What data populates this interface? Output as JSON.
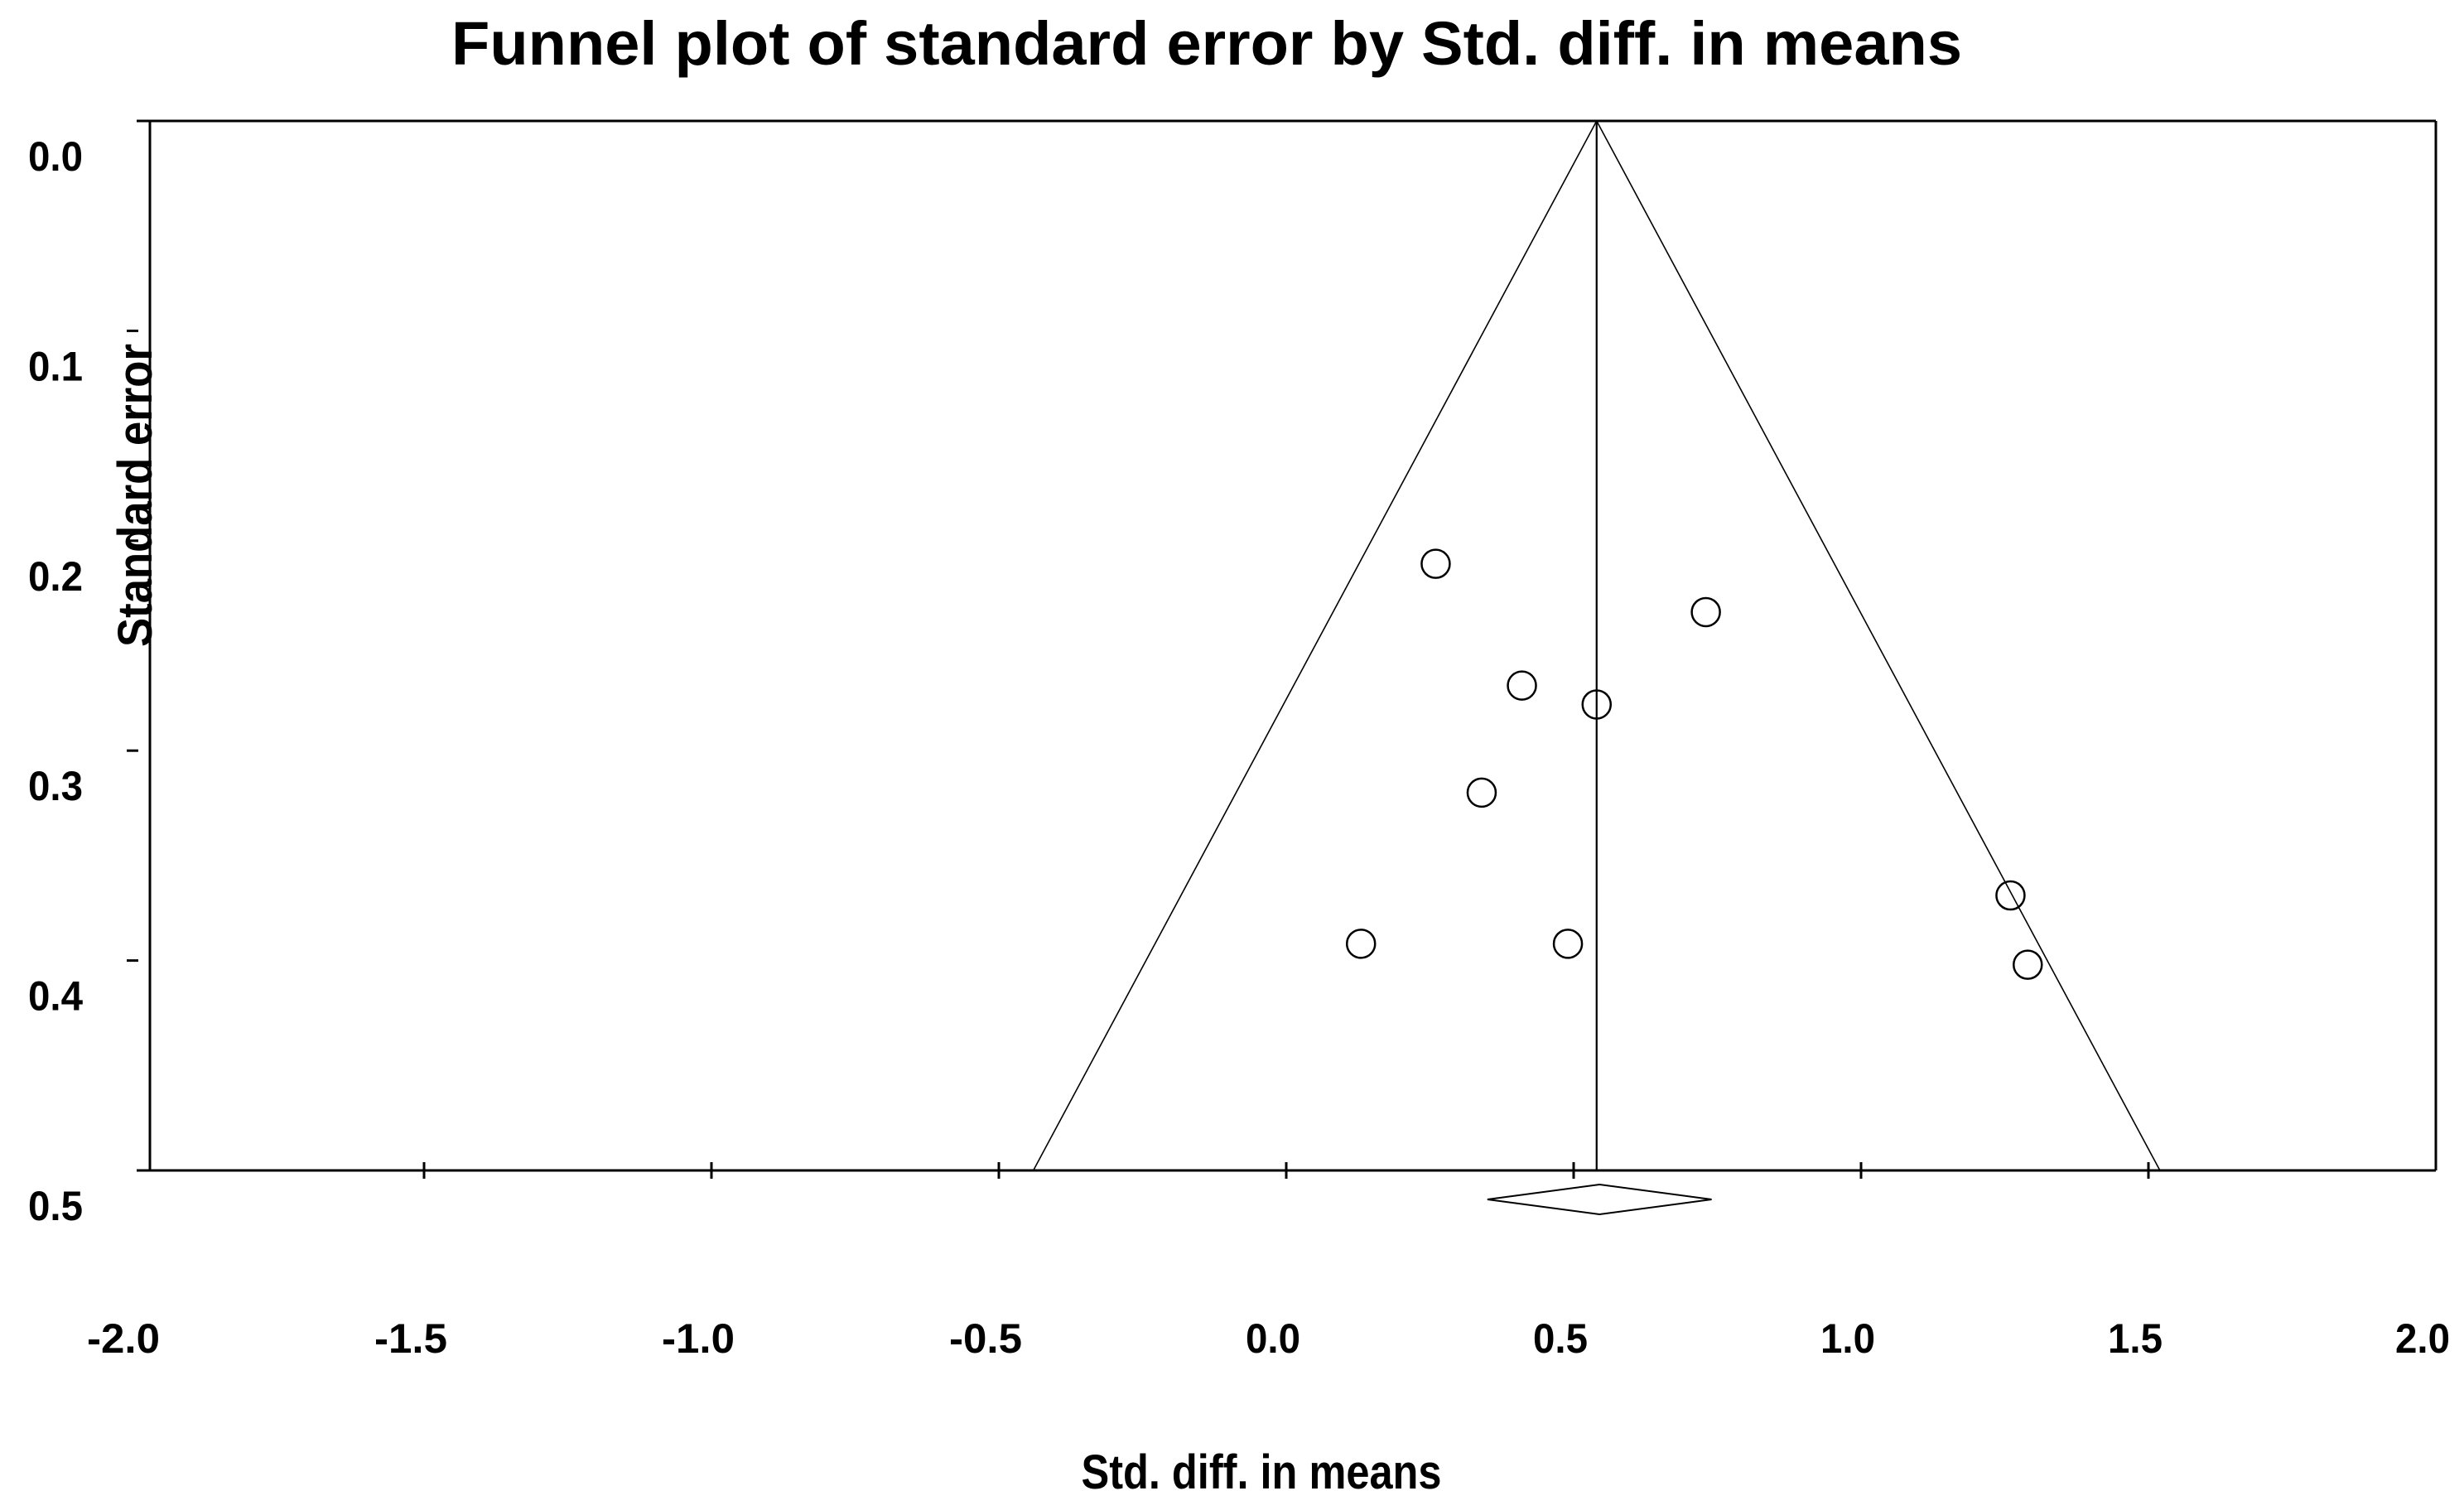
{
  "colors": {
    "foreground": "#000000",
    "background": "#ffffff"
  },
  "chart_data": {
    "type": "scatter",
    "variant": "meta-analysis-funnel-plot",
    "title": "Funnel plot of standard error by Std. diff. in means",
    "xlabel": "Std. diff. in means",
    "ylabel": "Standard error",
    "xlim": [
      -2.0,
      2.0
    ],
    "ylim": [
      0.0,
      0.5
    ],
    "y_axis_inverted": true,
    "grid": false,
    "legend": false,
    "x_tick_labels": [
      "-2.0",
      "-1.5",
      "-1.0",
      "-0.5",
      "0.0",
      "0.5",
      "1.0",
      "1.5",
      "2.0"
    ],
    "y_tick_labels": [
      "0.0",
      "0.1",
      "0.2",
      "0.3",
      "0.4",
      "0.5"
    ],
    "points": [
      {
        "x": 0.26,
        "se": 0.211
      },
      {
        "x": 0.73,
        "se": 0.234
      },
      {
        "x": 0.41,
        "se": 0.269
      },
      {
        "x": 0.54,
        "se": 0.278
      },
      {
        "x": 0.34,
        "se": 0.32
      },
      {
        "x": 1.26,
        "se": 0.369
      },
      {
        "x": 0.13,
        "se": 0.392
      },
      {
        "x": 0.49,
        "se": 0.392
      },
      {
        "x": 1.29,
        "se": 0.402
      }
    ],
    "funnel": {
      "center": 0.54,
      "ci_multiplier": 1.96,
      "se_min": 0.0,
      "se_max": 0.5
    },
    "summary_diamond": {
      "estimate": 0.54,
      "ci_low": 0.35,
      "ci_high": 0.74
    }
  }
}
